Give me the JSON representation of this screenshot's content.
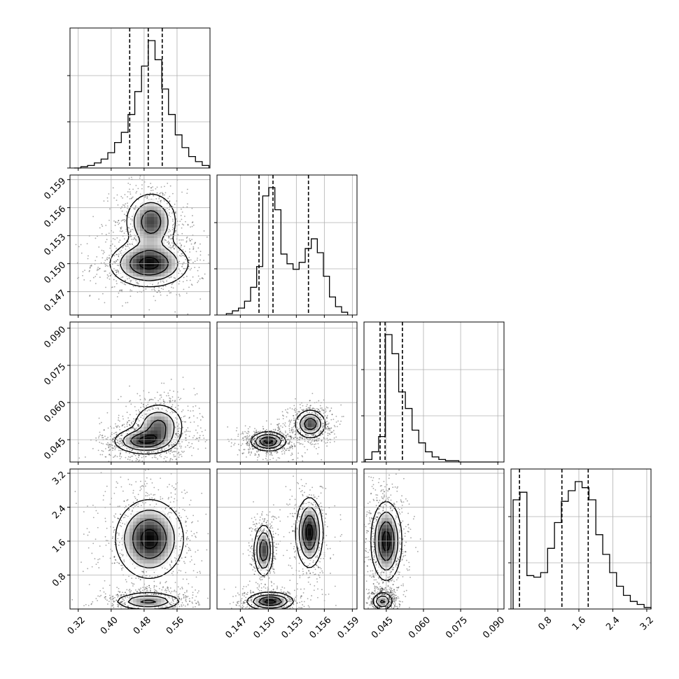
{
  "chart_data": {
    "type": "corner",
    "title": "",
    "parameters": [
      {
        "label": "",
        "range": [
          0.3,
          0.64
        ],
        "ticks": [
          "0.32",
          "0.40",
          "0.48",
          "0.56"
        ],
        "tick_values": [
          0.32,
          0.4,
          0.48,
          0.56
        ],
        "quantiles": [
          0.445,
          0.49,
          0.524
        ]
      },
      {
        "label": "",
        "range": [
          0.1445,
          0.1595
        ],
        "ticks": [
          "0.147",
          "0.150",
          "0.153",
          "0.156",
          "0.159"
        ],
        "tick_values": [
          0.147,
          0.15,
          0.153,
          0.156,
          0.159
        ],
        "quantiles": [
          0.149,
          0.1505,
          0.1543
        ]
      },
      {
        "label": "",
        "range": [
          0.036,
          0.0925
        ],
        "ticks": [
          "0.045",
          "0.060",
          "0.075",
          "0.090"
        ],
        "tick_values": [
          0.045,
          0.06,
          0.075,
          0.09
        ],
        "quantiles": [
          0.0425,
          0.0445,
          0.0515
        ]
      },
      {
        "label": "",
        "range": [
          0.0,
          3.3
        ],
        "ticks": [
          "0.8",
          "1.6",
          "2.4",
          "3.2"
        ],
        "tick_values": [
          0.8,
          1.6,
          2.4,
          3.2
        ],
        "quantiles": [
          0.2,
          1.2,
          1.82
        ]
      }
    ],
    "histograms": [
      {
        "param": 0,
        "edges": [
          0.31,
          0.6375
        ],
        "counts": [
          0,
          1,
          2,
          4,
          7,
          12,
          20,
          28,
          42,
          60,
          80,
          100,
          85,
          62,
          42,
          26,
          16,
          9,
          5,
          2
        ]
      },
      {
        "param": 1,
        "edges": [
          0.1455,
          0.1585
        ],
        "counts": [
          1,
          3,
          5,
          10,
          20,
          35,
          86,
          92,
          76,
          44,
          37,
          33,
          38,
          48,
          55,
          45,
          28,
          13,
          6,
          2
        ]
      },
      {
        "param": 2,
        "edges": [
          0.0365,
          0.0905
        ],
        "counts": [
          2,
          8,
          20,
          100,
          85,
          55,
          42,
          25,
          15,
          8,
          4,
          2,
          1,
          1,
          0,
          0,
          0,
          0,
          0,
          0
        ]
      },
      {
        "param": 3,
        "edges": [
          0.05,
          3.3
        ],
        "counts": [
          72,
          77,
          22,
          21,
          24,
          40,
          57,
          71,
          78,
          84,
          80,
          72,
          49,
          36,
          24,
          15,
          9,
          5,
          3,
          1
        ]
      }
    ],
    "pairs": [
      {
        "x": 0,
        "y": 1,
        "modes": [
          {
            "cx": 0.492,
            "cy": 0.15,
            "sx": 0.046,
            "sy": 0.0012,
            "w": 0.55
          },
          {
            "cx": 0.497,
            "cy": 0.1545,
            "sx": 0.03,
            "sy": 0.0015,
            "w": 0.45
          }
        ]
      },
      {
        "x": 0,
        "y": 2,
        "modes": [
          {
            "cx": 0.478,
            "cy": 0.0445,
            "sx": 0.035,
            "sy": 0.0025,
            "w": 0.55
          },
          {
            "cx": 0.515,
            "cy": 0.0505,
            "sx": 0.03,
            "sy": 0.0045,
            "w": 0.45
          }
        ]
      },
      {
        "x": 0,
        "y": 3,
        "modes": [
          {
            "cx": 0.493,
            "cy": 1.65,
            "sx": 0.04,
            "sy": 0.45,
            "w": 0.6
          },
          {
            "cx": 0.49,
            "cy": 0.18,
            "sx": 0.04,
            "sy": 0.1,
            "w": 0.4
          }
        ]
      },
      {
        "x": 1,
        "y": 2,
        "modes": [
          {
            "cx": 0.15,
            "cy": 0.0443,
            "sx": 0.0009,
            "sy": 0.0018,
            "w": 0.55
          },
          {
            "cx": 0.1545,
            "cy": 0.0513,
            "sx": 0.0008,
            "sy": 0.0028,
            "w": 0.45
          }
        ]
      },
      {
        "x": 1,
        "y": 3,
        "modes": [
          {
            "cx": 0.1495,
            "cy": 1.38,
            "sx": 0.0005,
            "sy": 0.3,
            "w": 0.3
          },
          {
            "cx": 0.1544,
            "cy": 1.8,
            "sx": 0.0007,
            "sy": 0.4,
            "w": 0.35
          },
          {
            "cx": 0.1502,
            "cy": 0.18,
            "sx": 0.0012,
            "sy": 0.1,
            "w": 0.35
          }
        ]
      },
      {
        "x": 2,
        "y": 3,
        "modes": [
          {
            "cx": 0.045,
            "cy": 1.6,
            "sx": 0.003,
            "sy": 0.45,
            "w": 0.6
          },
          {
            "cx": 0.0435,
            "cy": 0.18,
            "sx": 0.002,
            "sy": 0.1,
            "w": 0.4
          }
        ]
      }
    ],
    "grid": true,
    "quantile_line_style": "dashed"
  }
}
